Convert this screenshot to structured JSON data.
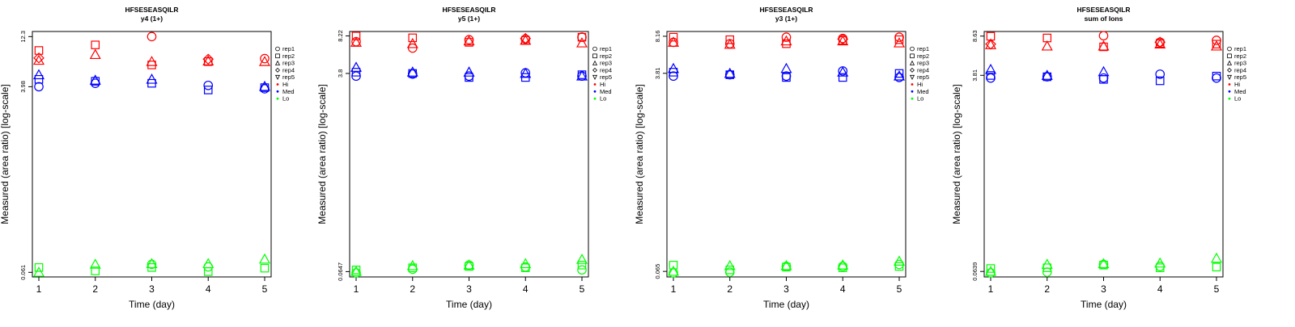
{
  "legend": {
    "entries": [
      {
        "label": "rep1",
        "marker": "circle"
      },
      {
        "label": "rep2",
        "marker": "square"
      },
      {
        "label": "rep3",
        "marker": "triangle-up"
      },
      {
        "label": "rep4",
        "marker": "diamond"
      },
      {
        "label": "rep5",
        "marker": "triangle-down"
      },
      {
        "label": "Hi",
        "marker": "dot",
        "color": "#ff0000"
      },
      {
        "label": "Med",
        "marker": "dot",
        "color": "#0000ff"
      },
      {
        "label": "Lo",
        "marker": "dot",
        "color": "#00ff00"
      }
    ],
    "placement": "right"
  },
  "colors": {
    "Hi": "#ff0000",
    "Med": "#0000ff",
    "Lo": "#00ff00"
  },
  "chart_data": [
    {
      "type": "scatter",
      "title": "HFSESEASQILR",
      "subtitle": "y4 (1+)",
      "xlabel": "Time (day)",
      "ylabel": "Measured (area ratio) [log-scale]",
      "x_ticks": [
        1,
        2,
        3,
        4,
        5
      ],
      "y_ticks": [
        "0.061",
        "3.98",
        "12.3"
      ],
      "y_scale": "log",
      "ylim": [
        0.055,
        13.8
      ],
      "series": [
        {
          "group": "Hi",
          "rep": "rep1",
          "values": [
            null,
            null,
            12.3,
            null,
            7.5
          ]
        },
        {
          "group": "Hi",
          "rep": "rep2",
          "values": [
            9.0,
            10.2,
            6.5,
            7.0,
            null
          ]
        },
        {
          "group": "Hi",
          "rep": "rep3",
          "values": [
            7.2,
            8.2,
            7.0,
            7.1,
            7.0
          ]
        },
        {
          "group": "Hi",
          "rep": "rep4",
          "values": [
            7.6,
            null,
            null,
            7.4,
            null
          ]
        },
        {
          "group": "Med",
          "rep": "rep1",
          "values": [
            3.98,
            4.3,
            null,
            4.1,
            3.8
          ]
        },
        {
          "group": "Med",
          "rep": "rep2",
          "values": [
            4.7,
            4.5,
            4.3,
            3.7,
            3.9
          ]
        },
        {
          "group": "Med",
          "rep": "rep3",
          "values": [
            5.2,
            4.6,
            4.7,
            null,
            4.0
          ]
        },
        {
          "group": "Lo",
          "rep": "rep1",
          "values": [
            null,
            null,
            0.073,
            0.069,
            null
          ]
        },
        {
          "group": "Lo",
          "rep": "rep2",
          "values": [
            0.068,
            0.063,
            0.068,
            0.062,
            0.067
          ]
        },
        {
          "group": "Lo",
          "rep": "rep3",
          "values": [
            0.061,
            0.073,
            0.074,
            0.074,
            0.082
          ]
        }
      ]
    },
    {
      "type": "scatter",
      "title": "HFSESEASQILR",
      "subtitle": "y5 (1+)",
      "xlabel": "Time (day)",
      "ylabel": "Measured (area ratio) [log-scale]",
      "x_ticks": [
        1,
        2,
        3,
        4,
        5
      ],
      "y_ticks": [
        "0.0647",
        "3.8",
        "8.22"
      ],
      "y_scale": "log",
      "ylim": [
        0.058,
        9.0
      ],
      "series": [
        {
          "group": "Hi",
          "rep": "rep1",
          "values": [
            7.3,
            6.4,
            7.6,
            7.7,
            8.0
          ]
        },
        {
          "group": "Hi",
          "rep": "rep2",
          "values": [
            8.2,
            7.9,
            7.2,
            7.5,
            8.0
          ]
        },
        {
          "group": "Hi",
          "rep": "rep3",
          "values": [
            7.2,
            7.0,
            7.4,
            7.5,
            7.1
          ]
        },
        {
          "group": "Hi",
          "rep": "rep4",
          "values": [
            null,
            null,
            null,
            7.8,
            null
          ]
        },
        {
          "group": "Med",
          "rep": "rep1",
          "values": [
            3.6,
            3.75,
            3.6,
            3.85,
            3.6
          ]
        },
        {
          "group": "Med",
          "rep": "rep2",
          "values": [
            3.9,
            3.8,
            3.5,
            3.5,
            3.7
          ]
        },
        {
          "group": "Med",
          "rep": "rep3",
          "values": [
            4.3,
            3.9,
            3.9,
            3.8,
            3.6
          ]
        },
        {
          "group": "Lo",
          "rep": "rep1",
          "values": [
            0.063,
            0.068,
            0.074,
            0.071,
            0.067
          ]
        },
        {
          "group": "Lo",
          "rep": "rep2",
          "values": [
            0.067,
            0.07,
            0.072,
            0.07,
            0.074
          ]
        },
        {
          "group": "Lo",
          "rep": "rep3",
          "values": [
            0.0647,
            0.073,
            0.074,
            0.076,
            0.083
          ]
        }
      ]
    },
    {
      "type": "scatter",
      "title": "HFSESEASQILR",
      "subtitle": "y3 (1+)",
      "xlabel": "Time (day)",
      "ylabel": "Measured (area ratio) [log-scale]",
      "x_ticks": [
        1,
        2,
        3,
        4,
        5
      ],
      "y_ticks": [
        "0.065",
        "3.81",
        "8.16"
      ],
      "y_scale": "log",
      "ylim": [
        0.058,
        9.0
      ],
      "series": [
        {
          "group": "Hi",
          "rep": "rep1",
          "values": [
            7.2,
            7.0,
            8.0,
            7.8,
            8.0
          ]
        },
        {
          "group": "Hi",
          "rep": "rep2",
          "values": [
            8.0,
            7.6,
            7.0,
            7.5,
            7.6
          ]
        },
        {
          "group": "Hi",
          "rep": "rep3",
          "values": [
            7.2,
            6.9,
            7.4,
            7.4,
            7.1
          ]
        },
        {
          "group": "Hi",
          "rep": "rep4",
          "values": [
            null,
            null,
            null,
            7.7,
            null
          ]
        },
        {
          "group": "Med",
          "rep": "rep1",
          "values": [
            3.6,
            3.7,
            3.6,
            4.0,
            3.5
          ]
        },
        {
          "group": "Med",
          "rep": "rep2",
          "values": [
            3.9,
            3.7,
            3.5,
            3.5,
            3.8
          ]
        },
        {
          "group": "Med",
          "rep": "rep3",
          "values": [
            4.2,
            3.8,
            4.2,
            3.9,
            3.6
          ]
        },
        {
          "group": "Lo",
          "rep": "rep1",
          "values": [
            0.063,
            0.064,
            0.072,
            0.072,
            0.075
          ]
        },
        {
          "group": "Lo",
          "rep": "rep2",
          "values": [
            0.074,
            0.067,
            0.071,
            0.07,
            0.072
          ]
        },
        {
          "group": "Lo",
          "rep": "rep3",
          "values": [
            0.065,
            0.073,
            0.073,
            0.074,
            0.08
          ]
        }
      ]
    },
    {
      "type": "scatter",
      "title": "HFSESEASQILR",
      "subtitle": "sum of Ions",
      "xlabel": "Time (day)",
      "ylabel": "Measured (area ratio) [log-scale]",
      "x_ticks": [
        1,
        2,
        3,
        4,
        5
      ],
      "y_ticks": [
        "0.0639",
        "3.81",
        "8.63"
      ],
      "y_scale": "log",
      "ylim": [
        0.057,
        9.5
      ],
      "series": [
        {
          "group": "Hi",
          "rep": "rep1",
          "values": [
            null,
            null,
            8.7,
            7.6,
            7.9
          ]
        },
        {
          "group": "Hi",
          "rep": "rep2",
          "values": [
            8.6,
            8.3,
            6.9,
            7.4,
            7.3
          ]
        },
        {
          "group": "Hi",
          "rep": "rep3",
          "values": [
            7.2,
            7.0,
            7.0,
            7.3,
            7.0
          ]
        },
        {
          "group": "Hi",
          "rep": "rep4",
          "values": [
            7.3,
            null,
            null,
            7.6,
            null
          ]
        },
        {
          "group": "Med",
          "rep": "rep1",
          "values": [
            3.6,
            3.7,
            3.6,
            3.9,
            3.6
          ]
        },
        {
          "group": "Med",
          "rep": "rep2",
          "values": [
            3.8,
            3.7,
            3.5,
            3.4,
            3.75
          ]
        },
        {
          "group": "Med",
          "rep": "rep3",
          "values": [
            4.3,
            3.8,
            4.1,
            null,
            null
          ]
        },
        {
          "group": "Lo",
          "rep": "rep1",
          "values": [
            0.062,
            0.063,
            0.074,
            0.071,
            null
          ]
        },
        {
          "group": "Lo",
          "rep": "rep2",
          "values": [
            0.068,
            0.069,
            0.073,
            0.069,
            0.07
          ]
        },
        {
          "group": "Lo",
          "rep": "rep3",
          "values": [
            0.0639,
            0.074,
            0.075,
            0.076,
            0.084
          ]
        }
      ]
    }
  ]
}
